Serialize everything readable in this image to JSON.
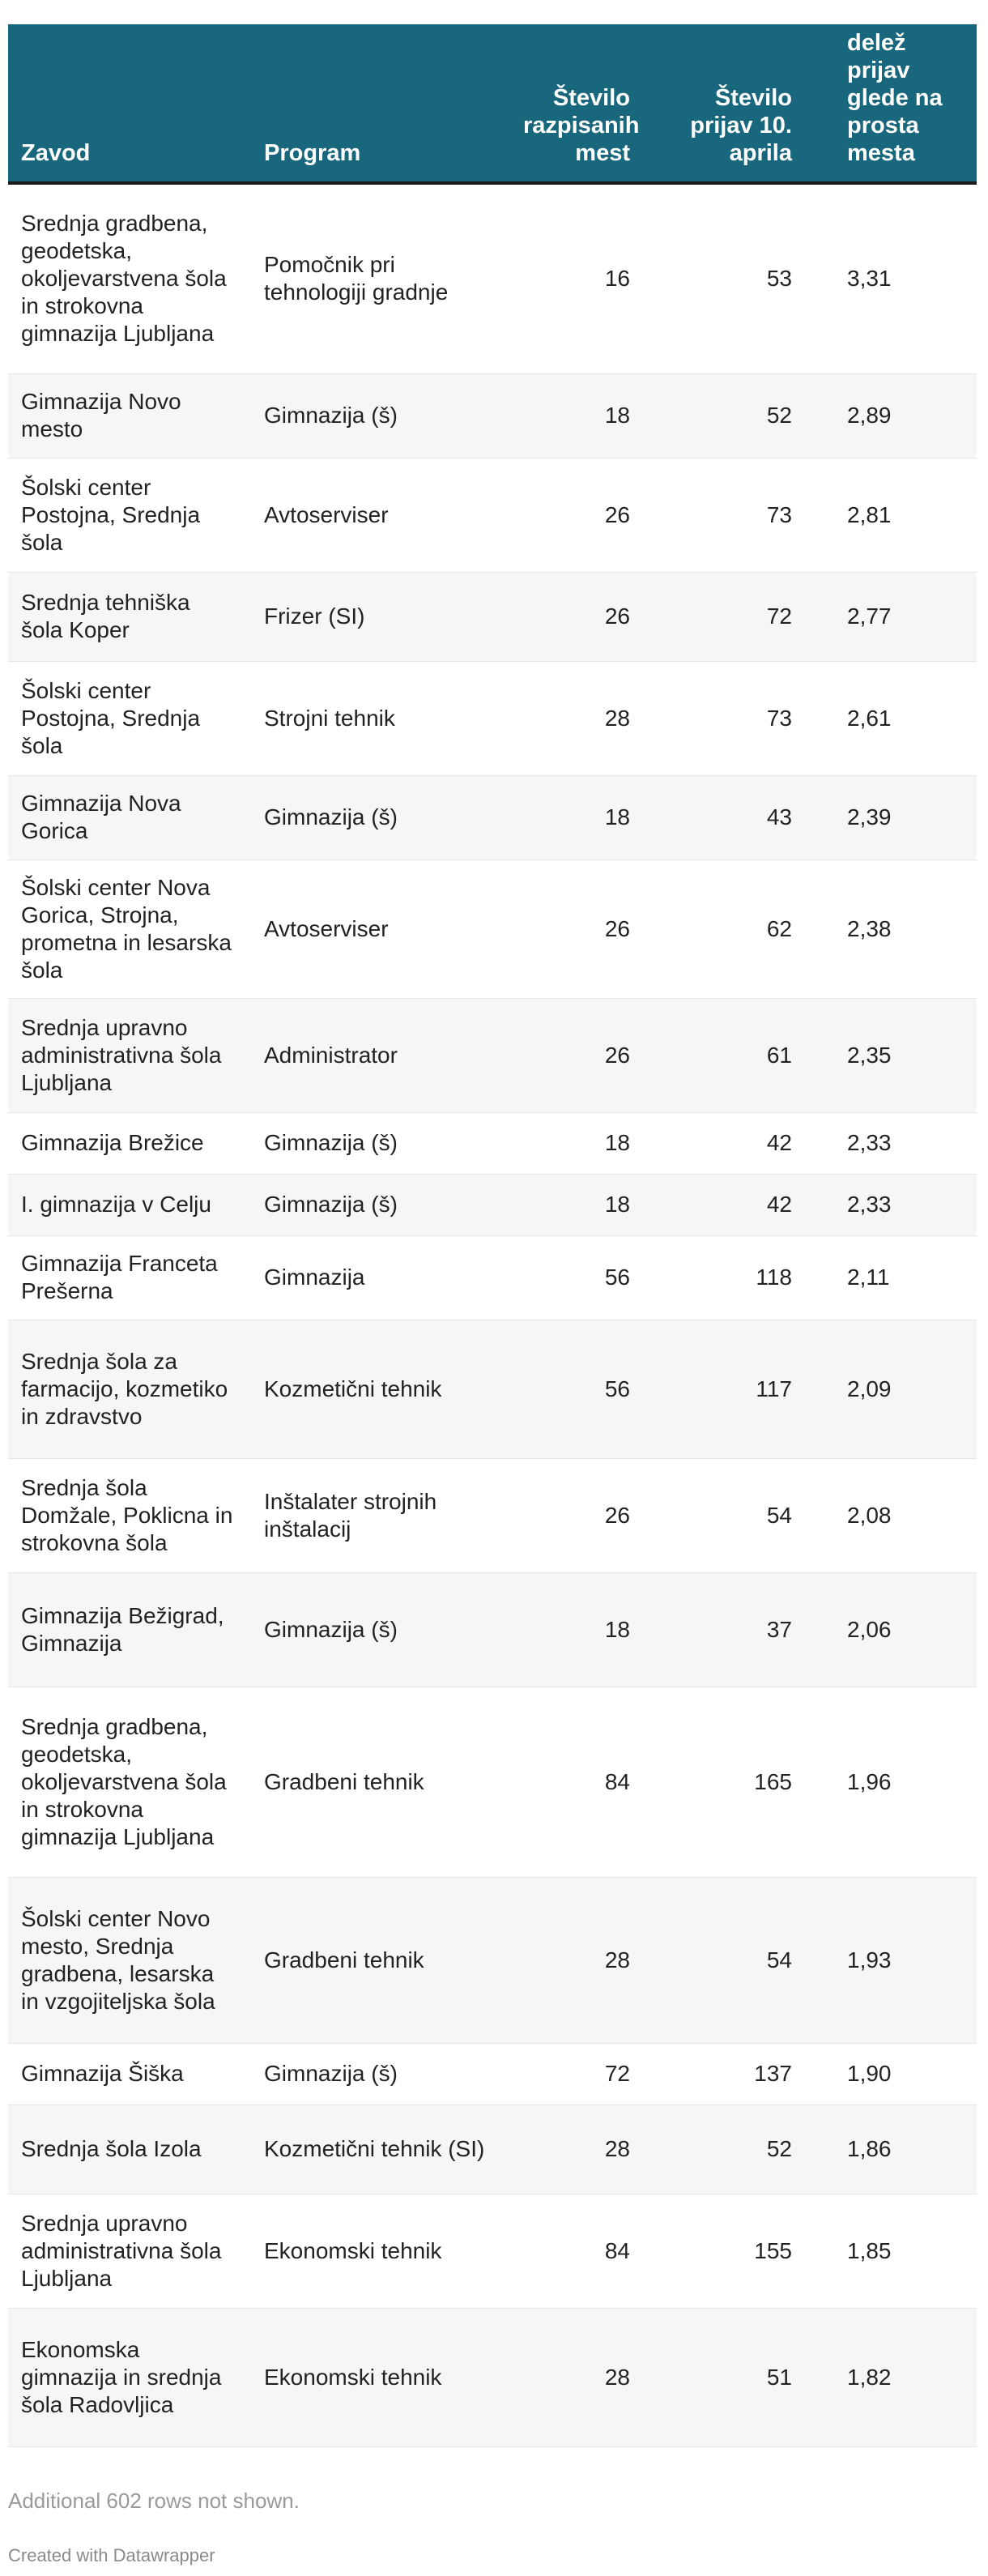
{
  "table": {
    "headers": {
      "zavod": "Zavod",
      "program": "Program",
      "mesta": "Število razpisanih mest",
      "prijave": "Število prijav 10. aprila",
      "delez": "delež prijav glede na prosta mesta"
    },
    "rows": [
      {
        "zavod": "Srednja gradbena, geodetska, okoljevarstvena šola in strokovna gimnazija Ljubljana",
        "program": "Pomočnik pri tehnologiji gradnje",
        "mesta": "16",
        "prijave": "53",
        "delez": "3,31"
      },
      {
        "zavod": "Gimnazija Novo mesto",
        "program": "Gimnazija (š)",
        "mesta": "18",
        "prijave": "52",
        "delez": "2,89"
      },
      {
        "zavod": "Šolski center Postojna, Srednja šola",
        "program": "Avtoserviser",
        "mesta": "26",
        "prijave": "73",
        "delez": "2,81"
      },
      {
        "zavod": "Srednja tehniška šola Koper",
        "program": "Frizer (SI)",
        "mesta": "26",
        "prijave": "72",
        "delez": "2,77"
      },
      {
        "zavod": "Šolski center Postojna, Srednja šola",
        "program": "Strojni tehnik",
        "mesta": "28",
        "prijave": "73",
        "delez": "2,61"
      },
      {
        "zavod": "Gimnazija Nova Gorica",
        "program": "Gimnazija (š)",
        "mesta": "18",
        "prijave": "43",
        "delez": "2,39"
      },
      {
        "zavod": "Šolski center Nova Gorica, Strojna, prometna in lesarska šola",
        "program": "Avtoserviser",
        "mesta": "26",
        "prijave": "62",
        "delez": "2,38"
      },
      {
        "zavod": "Srednja upravno administrativna šola Ljubljana",
        "program": "Administrator",
        "mesta": "26",
        "prijave": "61",
        "delez": "2,35"
      },
      {
        "zavod": "Gimnazija Brežice",
        "program": "Gimnazija (š)",
        "mesta": "18",
        "prijave": "42",
        "delez": "2,33"
      },
      {
        "zavod": "I. gimnazija v Celju",
        "program": "Gimnazija (š)",
        "mesta": "18",
        "prijave": "42",
        "delez": "2,33"
      },
      {
        "zavod": "Gimnazija Franceta Prešerna",
        "program": "Gimnazija",
        "mesta": "56",
        "prijave": "118",
        "delez": "2,11"
      },
      {
        "zavod": "Srednja šola za farmacijo, kozmetiko in zdravstvo",
        "program": "Kozmetični tehnik",
        "mesta": "56",
        "prijave": "117",
        "delez": "2,09"
      },
      {
        "zavod": "Srednja šola Domžale, Poklicna in strokovna šola",
        "program": "Inštalater strojnih inštalacij",
        "mesta": "26",
        "prijave": "54",
        "delez": "2,08"
      },
      {
        "zavod": "Gimnazija Bežigrad, Gimnazija",
        "program": "Gimnazija (š)",
        "mesta": "18",
        "prijave": "37",
        "delez": "2,06"
      },
      {
        "zavod": "Srednja gradbena, geodetska, okoljevarstvena šola in strokovna gimnazija Ljubljana",
        "program": "Gradbeni tehnik",
        "mesta": "84",
        "prijave": "165",
        "delez": "1,96"
      },
      {
        "zavod": "Šolski center Novo mesto, Srednja gradbena, lesarska in vzgojiteljska šola",
        "program": "Gradbeni tehnik",
        "mesta": "28",
        "prijave": "54",
        "delez": "1,93"
      },
      {
        "zavod": "Gimnazija Šiška",
        "program": "Gimnazija (š)",
        "mesta": "72",
        "prijave": "137",
        "delez": "1,90"
      },
      {
        "zavod": "Srednja šola Izola",
        "program": "Kozmetični tehnik (SI)",
        "mesta": "28",
        "prijave": "52",
        "delez": "1,86"
      },
      {
        "zavod": "Srednja upravno administrativna šola Ljubljana",
        "program": "Ekonomski tehnik",
        "mesta": "84",
        "prijave": "155",
        "delez": "1,85"
      },
      {
        "zavod": "Ekonomska gimnazija in srednja šola Radovljica",
        "program": "Ekonomski tehnik",
        "mesta": "28",
        "prijave": "51",
        "delez": "1,82"
      }
    ]
  },
  "footnote": "Additional 602 rows not shown.",
  "credit": "Created with Datawrapper",
  "colors": {
    "header_bg": "#19677d",
    "header_text": "#ffffff",
    "row_alt": "#f6f6f6"
  }
}
